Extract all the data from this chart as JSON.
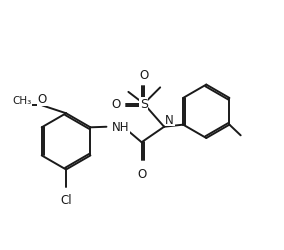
{
  "bg_color": "#ffffff",
  "line_color": "#1a1a1a",
  "line_width": 1.4,
  "font_size": 8.5,
  "fig_width": 2.84,
  "fig_height": 2.51,
  "dpi": 100,
  "xlim": [
    0,
    10
  ],
  "ylim": [
    0,
    8.8
  ]
}
